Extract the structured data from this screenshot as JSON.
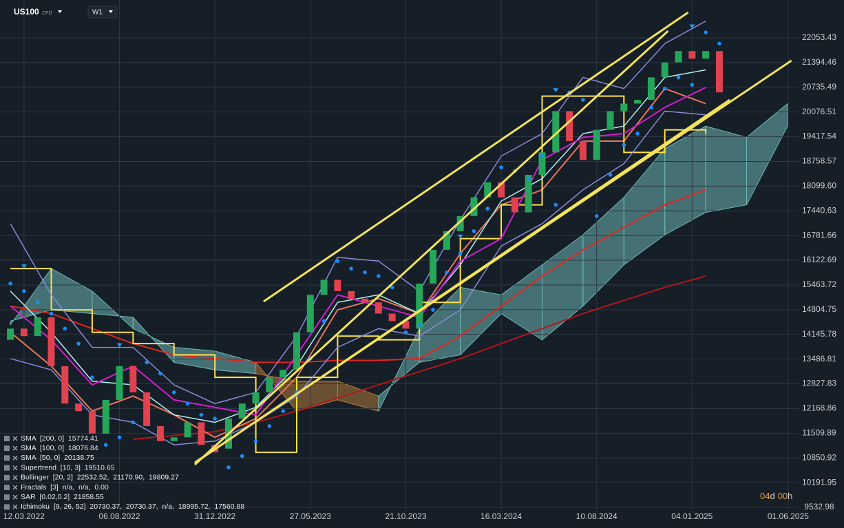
{
  "chart_data": {
    "type": "candlestick",
    "symbol": "US100",
    "symbol_type": "CFD",
    "timeframe": "W1",
    "countdown": {
      "days": "04",
      "day_unit": "d",
      "hours": "00",
      "hour_unit": "h"
    },
    "xlim": [
      "03.02.2022",
      "17.06.2025"
    ],
    "xticks": [
      "12.03.2022",
      "06.08.2022",
      "31.12.2022",
      "27.05.2023",
      "21.10.2023",
      "16.03.2024",
      "10.08.2024",
      "04.01.2025",
      "01.06.2025"
    ],
    "ylim": [
      9478,
      23063
    ],
    "yticks": [
      22053.43,
      21394.46,
      20735.49,
      20076.51,
      19417.54,
      18758.57,
      {
        "value": 18099.6,
        "label": "18099.60"
      },
      17440.63,
      16781.66,
      16122.69,
      15463.72,
      14804.75,
      14145.78,
      13486.81,
      12827.83,
      12168.86,
      11509.89,
      10850.92,
      10191.95,
      9532.98
    ],
    "grid": true,
    "up_color": "#26a65b",
    "down_color": "#e0424f",
    "x": [
      "19.02.2022",
      "12.03.2022",
      "02.04.2022",
      "23.04.2022",
      "14.05.2022",
      "04.06.2022",
      "25.06.2022",
      "16.07.2022",
      "06.08.2022",
      "27.08.2022",
      "17.09.2022",
      "08.10.2022",
      "29.10.2022",
      "19.11.2022",
      "10.12.2022",
      "31.12.2022",
      "21.01.2023",
      "11.02.2023",
      "04.03.2023",
      "25.03.2023",
      "15.04.2023",
      "06.05.2023",
      "27.05.2023",
      "17.06.2023",
      "08.07.2023",
      "29.07.2023",
      "19.08.2023",
      "09.09.2023",
      "30.09.2023",
      "21.10.2023",
      "11.11.2023",
      "02.12.2023",
      "23.12.2023",
      "13.01.2024",
      "03.02.2024",
      "24.02.2024",
      "16.03.2024",
      "06.04.2024",
      "27.04.2024",
      "18.05.2024",
      "08.06.2024",
      "29.06.2024",
      "20.07.2024",
      "10.08.2024",
      "31.08.2024",
      "21.09.2024",
      "12.10.2024",
      "02.11.2024",
      "23.11.2024",
      "14.12.2024",
      "04.01.2025",
      "25.01.2025",
      "15.02.2025"
    ],
    "open": [
      14000,
      14300,
      14100,
      14600,
      13300,
      12300,
      12100,
      11500,
      12400,
      13300,
      12600,
      11700,
      11300,
      11400,
      11800,
      11200,
      11100,
      11900,
      12300,
      12600,
      13000,
      13200,
      14200,
      15200,
      15600,
      15300,
      15100,
      15000,
      14700,
      14500,
      14300,
      15500,
      16400,
      16900,
      17300,
      17800,
      18200,
      17800,
      17400,
      18400,
      19000,
      20100,
      19300,
      18800,
      19600,
      20100,
      20300,
      20400,
      21000,
      21400,
      21700,
      21500,
      21700
    ],
    "close": [
      14300,
      14100,
      14600,
      13300,
      12300,
      12100,
      11500,
      12400,
      13300,
      12600,
      11700,
      11300,
      11400,
      11800,
      11200,
      11000,
      11900,
      12300,
      12600,
      13000,
      13200,
      14200,
      15200,
      15600,
      15300,
      15100,
      15000,
      14700,
      14500,
      14300,
      15500,
      16400,
      16900,
      17300,
      17800,
      18200,
      17800,
      17400,
      18400,
      19000,
      20100,
      19300,
      18800,
      19600,
      20100,
      20300,
      20400,
      21000,
      21400,
      21700,
      21500,
      21700,
      20600
    ],
    "trend_lines": {
      "color": "#f2e35a",
      "lines": [
        {
          "x": [
            "16.03.2023",
            "29.12.2024"
          ],
          "values": [
            15022,
            22732
          ]
        },
        {
          "x": [
            "30.11.2022",
            "06.06.2025"
          ],
          "values": [
            10726,
            21447
          ]
        },
        {
          "x": [
            "30.11.2022",
            "28.11.2024"
          ],
          "values": [
            10671,
            22237
          ]
        },
        {
          "x": [
            "07.12.2022",
            "03.03.2025"
          ],
          "values": [
            10800,
            20401
          ]
        }
      ]
    },
    "indicators": [
      {
        "name": "SMA  [200, 0]  15774.41",
        "color": "#b3161a",
        "x": [
          "19.02.2022",
          "23.04.2022",
          "25.06.2022",
          "27.08.2022",
          "29.10.2022",
          "31.12.2022",
          "04.03.2023",
          "06.05.2023",
          "08.07.2023",
          "09.09.2023",
          "11.11.2023",
          "13.01.2024",
          "16.03.2024",
          "18.05.2024",
          "20.07.2024",
          "21.09.2024",
          "23.11.2024",
          "25.01.2025"
        ],
        "values": [
          null,
          null,
          null,
          11350,
          11450,
          11550,
          11800,
          12100,
          12450,
          12800,
          13150,
          13500,
          13900,
          14300,
          14700,
          15050,
          15400,
          15700
        ]
      },
      {
        "name": "SMA  [100, 0]  18076.84",
        "color": "#e0261f",
        "x": [
          "19.02.2022",
          "23.04.2022",
          "25.06.2022",
          "27.08.2022",
          "29.10.2022",
          "31.12.2022",
          "04.03.2023",
          "06.05.2023",
          "08.07.2023",
          "09.09.2023",
          "11.11.2023",
          "13.01.2024",
          "16.03.2024",
          "18.05.2024",
          "20.07.2024",
          "21.09.2024",
          "23.11.2024",
          "25.01.2025"
        ],
        "values": [
          14900,
          14700,
          14300,
          13900,
          13600,
          13500,
          13400,
          13400,
          13450,
          13450,
          13500,
          14100,
          14900,
          15700,
          16400,
          17000,
          17600,
          18000
        ]
      },
      {
        "name": "SMA  [50, 0]  20138.75",
        "color": "#e8775a",
        "x": [
          "19.02.2022",
          "23.04.2022",
          "25.06.2022",
          "27.08.2022",
          "29.10.2022",
          "31.12.2022",
          "04.03.2023",
          "06.05.2023",
          "08.07.2023",
          "09.09.2023",
          "11.11.2023",
          "13.01.2024",
          "16.03.2024",
          "18.05.2024",
          "20.07.2024",
          "21.09.2024",
          "23.11.2024",
          "25.01.2025"
        ],
        "values": [
          14200,
          13300,
          12100,
          12500,
          12000,
          11400,
          11900,
          13000,
          14800,
          15100,
          14700,
          16300,
          17600,
          18000,
          19300,
          19300,
          20700,
          20300
        ]
      },
      {
        "name": "Supertrend  [10, 3]  19510.65",
        "color": "#ffe24a",
        "step": true,
        "x": [
          "19.02.2022",
          "23.04.2022",
          "25.06.2022",
          "27.08.2022",
          "29.10.2022",
          "31.12.2022",
          "04.03.2023",
          "06.05.2023",
          "08.07.2023",
          "09.09.2023",
          "11.11.2023",
          "13.01.2024",
          "16.03.2024",
          "18.05.2024",
          "20.07.2024",
          "21.09.2024",
          "23.11.2024",
          "25.01.2025"
        ],
        "values": [
          15900,
          14800,
          14200,
          13900,
          13600,
          13000,
          11000,
          13000,
          14100,
          14000,
          15000,
          16700,
          17600,
          20500,
          20500,
          19000,
          19600,
          19500
        ]
      },
      {
        "name": "Bollinger  [20, 2]  22532.52,  21170.90,  19809.27",
        "color": "#8a8ad8",
        "middle_color": "#aef0ef",
        "x": [
          "19.02.2022",
          "23.04.2022",
          "25.06.2022",
          "27.08.2022",
          "29.10.2022",
          "31.12.2022",
          "04.03.2023",
          "06.05.2023",
          "08.07.2023",
          "09.09.2023",
          "11.11.2023",
          "13.01.2024",
          "16.03.2024",
          "18.05.2024",
          "20.07.2024",
          "21.09.2024",
          "23.11.2024",
          "25.01.2025"
        ],
        "upper": [
          17100,
          15200,
          13800,
          13800,
          12800,
          12300,
          12600,
          14100,
          16200,
          16100,
          15300,
          17200,
          18900,
          19500,
          21000,
          20700,
          21900,
          22500
        ],
        "middle": [
          15300,
          14200,
          12900,
          12800,
          12000,
          11800,
          12200,
          13300,
          15000,
          15200,
          14700,
          16000,
          17700,
          18300,
          19500,
          19700,
          21000,
          21200
        ],
        "lower": [
          13500,
          13200,
          12000,
          11800,
          11200,
          11300,
          11800,
          12500,
          13800,
          14300,
          14100,
          14800,
          16500,
          17100,
          18000,
          18700,
          20100,
          20000
        ]
      },
      {
        "name": "Fractals  [3]  n/a,  n/a,  0.00",
        "color": "#2196f3",
        "x": [
          "12.03.2022",
          "06.08.2022",
          "13.01.2024",
          "08.06.2024",
          "04.01.2025"
        ],
        "values": [
          15900,
          13800,
          16700,
          20600,
          22300
        ]
      },
      {
        "name": "SAR  [0.02,0.2]  21858.55",
        "color": "#1a8cff",
        "values": [
          15500,
          15300,
          15000,
          14700,
          14300,
          13900,
          13000,
          11200,
          11400,
          11800,
          13400,
          13100,
          12600,
          12300,
          12000,
          11900,
          10600,
          10900,
          11300,
          11700,
          12100,
          12600,
          13500,
          14500,
          16100,
          15900,
          15800,
          15700,
          15400,
          14200,
          14400,
          14800,
          15800,
          16300,
          16900,
          17500,
          18600,
          18500,
          18300,
          18900,
          17600,
          20600,
          20400,
          17300,
          18400,
          19200,
          19500,
          20200,
          20700,
          21000,
          20800,
          22200,
          21900
        ]
      },
      {
        "name": "Ichimoku  [9, 26, 52]  20730.37,  20730.37,  n/a,  18995.72,  17560.88",
        "color": "#d21fd2",
        "x": [
          "19.02.2022",
          "23.04.2022",
          "25.06.2022",
          "27.08.2022",
          "29.10.2022",
          "31.12.2022",
          "04.03.2023",
          "06.05.2023",
          "08.07.2023",
          "09.09.2023",
          "11.11.2023",
          "13.01.2024",
          "16.03.2024",
          "18.05.2024",
          "20.07.2024",
          "21.09.2024",
          "23.11.2024",
          "25.01.2025"
        ],
        "values": [
          14900,
          14000,
          12800,
          13300,
          12400,
          12200,
          12000,
          13600,
          15200,
          14900,
          14600,
          16100,
          16700,
          18800,
          19400,
          19500,
          20200,
          20730
        ],
        "cloud_x": [
          "19.02.2022",
          "23.04.2022",
          "25.06.2022",
          "27.08.2022",
          "29.10.2022",
          "31.12.2022",
          "04.03.2023",
          "06.05.2023",
          "08.07.2023",
          "09.09.2023",
          "11.11.2023",
          "13.01.2024",
          "16.03.2024",
          "18.05.2024",
          "20.07.2024",
          "21.09.2024",
          "23.11.2024",
          "25.01.2025",
          "29.03.2025",
          "31.05.2025"
        ],
        "span_a": [
          14400,
          15900,
          15300,
          14300,
          13800,
          13700,
          13400,
          12100,
          12400,
          12100,
          14300,
          15400,
          15200,
          16000,
          16800,
          17800,
          19100,
          19700,
          19400,
          20300
        ],
        "span_b": [
          14500,
          14800,
          14700,
          14600,
          13400,
          13200,
          13100,
          12900,
          12900,
          12500,
          13400,
          13600,
          14700,
          14000,
          14900,
          16000,
          16800,
          17400,
          17600,
          19700
        ],
        "up_color": "#6fb7b5",
        "down_color": "#b07a3a"
      }
    ]
  }
}
